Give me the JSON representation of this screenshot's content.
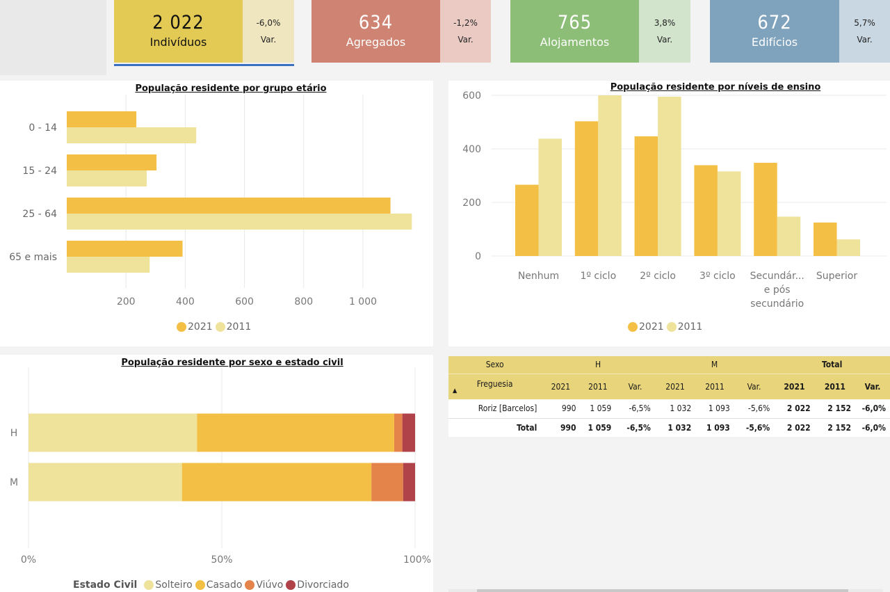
{
  "kpis": [
    {
      "value": "2 022",
      "label": "Indivíduos",
      "change": "-6,0%",
      "change_label": "Var.",
      "main_color": "#e2ca55",
      "side_color": "#efe6c0",
      "text_color": "#111111",
      "selected": true
    },
    {
      "value": "634",
      "label": "Agregados",
      "change": "-1,2%",
      "change_label": "Var.",
      "main_color": "#cf8373",
      "side_color": "#ebcac4",
      "text_color": "#ffffff",
      "selected": false
    },
    {
      "value": "765",
      "label": "Alojamentos",
      "change": "3,8%",
      "change_label": "Var.",
      "main_color": "#8dbe78",
      "side_color": "#d3e4cc",
      "text_color": "#ffffff",
      "selected": false
    },
    {
      "value": "672",
      "label": "Edifícios",
      "change": "5,7%",
      "change_label": "Var.",
      "main_color": "#7fa2bd",
      "side_color": "#c9d7e2",
      "text_color": "#ffffff",
      "selected": false
    }
  ],
  "colors": {
    "y2021": "#f4bf45",
    "y2011": "#efe29b",
    "solteiro": "#efe29b",
    "casado": "#f4bf45",
    "viuvo": "#e4844a",
    "divorciado": "#b0434a",
    "accent_underline": "#3b6fc0"
  },
  "chart_data": [
    {
      "id": "age",
      "type": "bar",
      "orientation": "horizontal",
      "title": "População residente por grupo etário",
      "categories": [
        "0 - 14",
        "15 - 24",
        "25 - 64",
        "65 e mais"
      ],
      "series": [
        {
          "name": "2021",
          "values": [
            235,
            303,
            1093,
            391
          ]
        },
        {
          "name": "2011",
          "values": [
            437,
            270,
            1165,
            280
          ]
        }
      ],
      "xticks": [
        200,
        400,
        600,
        800,
        1000
      ],
      "xtick_labels": [
        "200",
        "400",
        "600",
        "800",
        "1 000"
      ],
      "xlim": [
        0,
        1170
      ],
      "grid": true,
      "legend": [
        "2021",
        "2011"
      ],
      "legend_position": "bottom-center"
    },
    {
      "id": "education",
      "type": "bar",
      "orientation": "vertical",
      "title": "População residente por níveis de ensino",
      "categories": [
        "Nenhum",
        "1º ciclo",
        "2º ciclo",
        "3º ciclo",
        "Secundár...|e pós|secundário",
        "Superior"
      ],
      "series": [
        {
          "name": "2021",
          "values": [
            266,
            503,
            447,
            339,
            348,
            125
          ]
        },
        {
          "name": "2011",
          "values": [
            438,
            600,
            595,
            316,
            147,
            62
          ]
        }
      ],
      "yticks": [
        0,
        200,
        400,
        600
      ],
      "ylim": [
        0,
        600
      ],
      "grid": true,
      "legend": [
        "2021",
        "2011"
      ],
      "legend_position": "bottom-center"
    },
    {
      "id": "civil",
      "type": "bar",
      "orientation": "horizontal-stacked-100",
      "title": "População residente por sexo e estado civil",
      "categories": [
        "H",
        "M"
      ],
      "series": [
        {
          "name": "Solteiro",
          "values": [
            43.6,
            39.7
          ]
        },
        {
          "name": "Casado",
          "values": [
            51.0,
            49.0
          ]
        },
        {
          "name": "Viúvo",
          "values": [
            2.1,
            8.2
          ]
        },
        {
          "name": "Divorciado",
          "values": [
            3.3,
            3.1
          ]
        }
      ],
      "xticks": [
        "0%",
        "50%",
        "100%"
      ],
      "xlim": [
        0,
        100
      ],
      "grid": true,
      "legend_title": "Estado Civil",
      "legend": [
        "Solteiro",
        "Casado",
        "Viúvo",
        "Divorciado"
      ],
      "legend_position": "bottom-center"
    }
  ],
  "table": {
    "corner_top": "Sexo",
    "corner_bottom": "Freguesia",
    "sort_icon": "▲",
    "groups": [
      "H",
      "M",
      "Total"
    ],
    "subheaders": [
      "2021",
      "2011",
      "Var."
    ],
    "rows": [
      {
        "label": "Roriz [Barcelos]",
        "cells": [
          "990",
          "1 059",
          "-6,5%",
          "1 032",
          "1 093",
          "-5,6%",
          "2 022",
          "2 152",
          "-6,0%"
        ]
      },
      {
        "label": "Total",
        "cells": [
          "990",
          "1 059",
          "-6,5%",
          "1 032",
          "1 093",
          "-5,6%",
          "2 022",
          "2 152",
          "-6,0%"
        ]
      }
    ]
  }
}
